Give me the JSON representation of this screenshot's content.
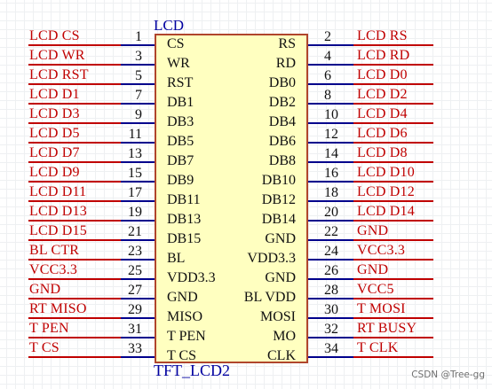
{
  "component": {
    "ref": "LCD",
    "value": "TFT_LCD2"
  },
  "watermark": "CSDN @Tree-gg",
  "left_pins": [
    {
      "num": "1",
      "name": "CS",
      "net": "LCD_CS"
    },
    {
      "num": "3",
      "name": "WR",
      "net": "LCD_WR"
    },
    {
      "num": "5",
      "name": "RST",
      "net": "LCD_RST"
    },
    {
      "num": "7",
      "name": "DB1",
      "net": "LCD_D1"
    },
    {
      "num": "9",
      "name": "DB3",
      "net": "LCD_D3"
    },
    {
      "num": "11",
      "name": "DB5",
      "net": "LCD_D5"
    },
    {
      "num": "13",
      "name": "DB7",
      "net": "LCD_D7"
    },
    {
      "num": "15",
      "name": "DB9",
      "net": "LCD_D9"
    },
    {
      "num": "17",
      "name": "DB11",
      "net": "LCD_D11"
    },
    {
      "num": "19",
      "name": "DB13",
      "net": "LCD_D13"
    },
    {
      "num": "21",
      "name": "DB15",
      "net": "LCD_D15"
    },
    {
      "num": "23",
      "name": "BL",
      "net": "BL_CTR"
    },
    {
      "num": "25",
      "name": "VDD3.3",
      "net": "VCC3.3"
    },
    {
      "num": "27",
      "name": "GND",
      "net": "GND"
    },
    {
      "num": "29",
      "name": "MISO",
      "net": "RT_MISO"
    },
    {
      "num": "31",
      "name": "T_PEN",
      "net": "T_PEN"
    },
    {
      "num": "33",
      "name": "T_CS",
      "net": "T_CS"
    }
  ],
  "right_pins": [
    {
      "num": "2",
      "name": "RS",
      "net": "LCD_RS"
    },
    {
      "num": "4",
      "name": "RD",
      "net": "LCD_RD"
    },
    {
      "num": "6",
      "name": "DB0",
      "net": "LCD_D0"
    },
    {
      "num": "8",
      "name": "DB2",
      "net": "LCD_D2"
    },
    {
      "num": "10",
      "name": "DB4",
      "net": "LCD_D4"
    },
    {
      "num": "12",
      "name": "DB6",
      "net": "LCD_D6"
    },
    {
      "num": "14",
      "name": "DB8",
      "net": "LCD_D8"
    },
    {
      "num": "16",
      "name": "DB10",
      "net": "LCD_D10"
    },
    {
      "num": "18",
      "name": "DB12",
      "net": "LCD_D12"
    },
    {
      "num": "20",
      "name": "DB14",
      "net": "LCD_D14"
    },
    {
      "num": "22",
      "name": "GND",
      "net": "GND"
    },
    {
      "num": "24",
      "name": "VDD3.3",
      "net": "VCC3.3"
    },
    {
      "num": "26",
      "name": "GND",
      "net": "GND"
    },
    {
      "num": "28",
      "name": "BL_VDD",
      "net": "VCC5"
    },
    {
      "num": "30",
      "name": "MOSI",
      "net": "T_MOSI"
    },
    {
      "num": "32",
      "name": "MO",
      "net": "RT_BUSY"
    },
    {
      "num": "34",
      "name": "CLK",
      "net": "T_CLK"
    }
  ]
}
